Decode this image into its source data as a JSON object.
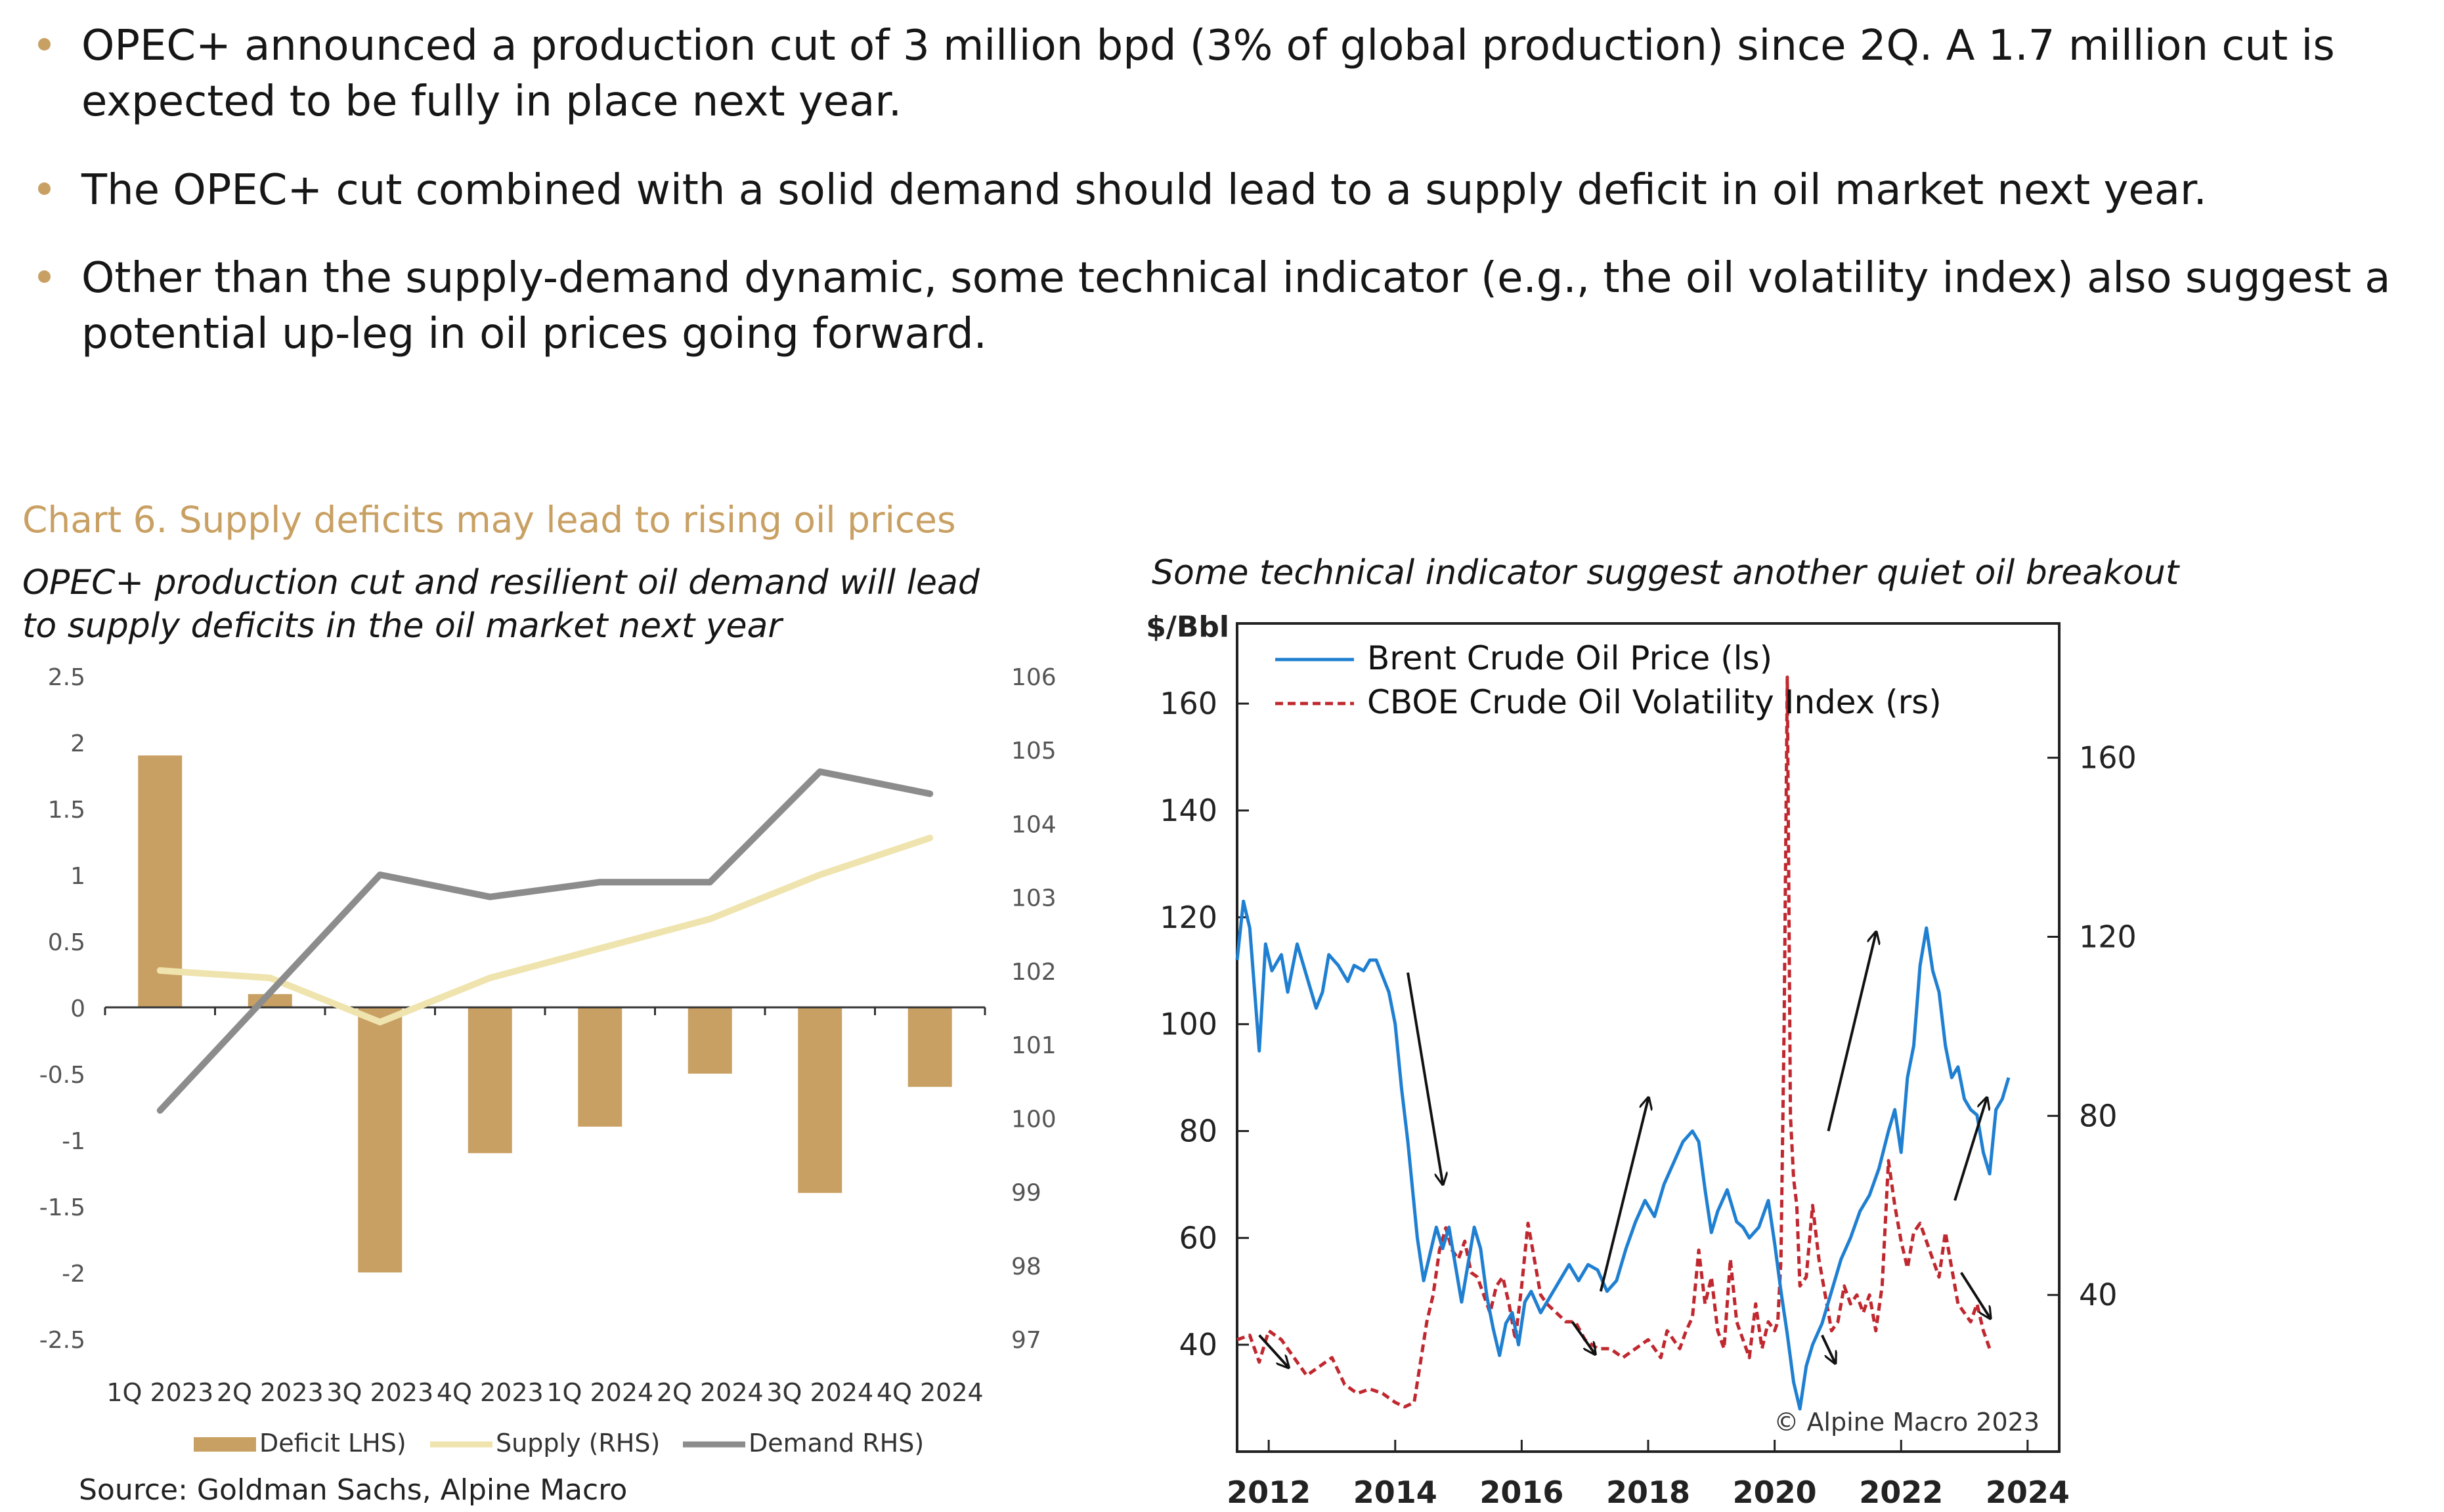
{
  "bullets": [
    {
      "text": "OPEC+ announced a production cut of 3 million bpd (3% of global production) since 2Q. A 1.7 million cut is expected to be fully in place next year."
    },
    {
      "text": "The OPEC+ cut combined with a solid demand should lead to a supply deficit in oil market next year."
    },
    {
      "text": "Other than the supply-demand dynamic, some technical indicator (e.g., the oil volatility index) also suggest a potential up-leg in oil prices going forward."
    }
  ],
  "chart6": {
    "title": "Chart 6. Supply deficits may lead to rising oil prices",
    "subtitle": "OPEC+ production cut and resilient oil demand will lead to supply deficits in the oil market next year"
  },
  "right_chart": {
    "subtitle": "Some technical indicator suggest another quiet oil breakout"
  },
  "source": "Source: Goldman Sachs, Alpine Macro",
  "colors": {
    "accent": "#c9a063",
    "bar": "#c9a063",
    "supply": "#efe3ae",
    "demand": "#8c8c8c",
    "brent": "#1f7fd1",
    "ovx": "#c0282f"
  },
  "chart_data": [
    {
      "type": "bar",
      "categories": [
        "1Q 2023",
        "2Q 2023",
        "3Q 2023",
        "4Q 2023",
        "1Q 2024",
        "2Q 2024",
        "3Q 2024",
        "4Q 2024"
      ],
      "series": [
        {
          "name": "Deficit LHS)",
          "type": "bar",
          "axis": "left",
          "values": [
            1.9,
            0.1,
            -2.0,
            -1.1,
            -0.9,
            -0.5,
            -1.4,
            -0.6
          ]
        },
        {
          "name": "Supply (RHS)",
          "type": "line",
          "axis": "right",
          "values": [
            102.0,
            101.9,
            101.3,
            101.9,
            102.3,
            102.7,
            103.3,
            103.8
          ]
        },
        {
          "name": "Demand RHS)",
          "type": "line",
          "axis": "right",
          "values": [
            100.1,
            101.7,
            103.3,
            103.0,
            103.2,
            103.2,
            104.7,
            104.4
          ]
        }
      ],
      "ylim_left": [
        -2.5,
        2.5
      ],
      "yticks_left": [
        "2.5",
        "2",
        "1.5",
        "1",
        "0.5",
        "0",
        "-0.5",
        "-1",
        "-1.5",
        "-2",
        "-2.5"
      ],
      "ylim_right": [
        97,
        106
      ],
      "yticks_right": [
        "106",
        "105",
        "104",
        "103",
        "102",
        "101",
        "100",
        "99",
        "98",
        "97"
      ],
      "legend": [
        "Deficit LHS)",
        "Supply (RHS)",
        "Demand RHS)"
      ],
      "legend_position": "bottom"
    },
    {
      "type": "line",
      "ylabel_left": "$/Bbl",
      "xlim": [
        2011.5,
        2024.5
      ],
      "xticks": [
        "2012",
        "2014",
        "2016",
        "2018",
        "2020",
        "2022",
        "2024"
      ],
      "ylim_left": [
        20,
        175
      ],
      "yticks_left": [
        "160",
        "140",
        "120",
        "100",
        "80",
        "60",
        "40"
      ],
      "ylim_right": [
        5,
        190
      ],
      "yticks_right": [
        "160",
        "120",
        "80",
        "40"
      ],
      "legend": [
        "Brent Crude Oil Price (ls)",
        "CBOE Crude Oil Volatility Index (rs)"
      ],
      "legend_position": "top-left",
      "watermark": "© Alpine Macro 2023",
      "series": [
        {
          "name": "Brent Crude Oil Price (ls)",
          "axis": "left",
          "x": [
            2011.5,
            2011.6,
            2011.7,
            2011.85,
            2011.95,
            2012.05,
            2012.2,
            2012.3,
            2012.45,
            2012.6,
            2012.75,
            2012.85,
            2012.95,
            2013.1,
            2013.25,
            2013.35,
            2013.5,
            2013.6,
            2013.7,
            2013.8,
            2013.9,
            2014.0,
            2014.1,
            2014.2,
            2014.35,
            2014.45,
            2014.55,
            2014.65,
            2014.75,
            2014.85,
            2014.95,
            2015.05,
            2015.15,
            2015.25,
            2015.35,
            2015.45,
            2015.55,
            2015.65,
            2015.75,
            2015.85,
            2015.95,
            2016.05,
            2016.15,
            2016.3,
            2016.45,
            2016.6,
            2016.75,
            2016.9,
            2017.05,
            2017.2,
            2017.35,
            2017.5,
            2017.65,
            2017.8,
            2017.95,
            2018.1,
            2018.25,
            2018.4,
            2018.55,
            2018.7,
            2018.8,
            2018.9,
            2019.0,
            2019.1,
            2019.25,
            2019.4,
            2019.5,
            2019.6,
            2019.75,
            2019.9,
            2020.0,
            2020.1,
            2020.2,
            2020.3,
            2020.4,
            2020.5,
            2020.6,
            2020.75,
            2020.9,
            2021.05,
            2021.2,
            2021.35,
            2021.5,
            2021.65,
            2021.8,
            2021.9,
            2022.0,
            2022.1,
            2022.2,
            2022.3,
            2022.4,
            2022.5,
            2022.6,
            2022.7,
            2022.8,
            2022.9,
            2023.0,
            2023.1,
            2023.2,
            2023.3,
            2023.4,
            2023.5,
            2023.6,
            2023.7
          ],
          "values": [
            112,
            123,
            118,
            95,
            115,
            110,
            113,
            106,
            115,
            109,
            103,
            106,
            113,
            111,
            108,
            111,
            110,
            112,
            112,
            109,
            106,
            100,
            88,
            78,
            60,
            52,
            57,
            62,
            58,
            62,
            55,
            48,
            55,
            62,
            58,
            49,
            43,
            38,
            44,
            46,
            40,
            48,
            50,
            46,
            49,
            52,
            55,
            52,
            55,
            54,
            50,
            52,
            58,
            63,
            67,
            64,
            70,
            74,
            78,
            80,
            78,
            69,
            61,
            65,
            69,
            63,
            62,
            60,
            62,
            67,
            59,
            50,
            42,
            33,
            28,
            36,
            40,
            44,
            50,
            56,
            60,
            65,
            68,
            73,
            80,
            84,
            76,
            90,
            96,
            111,
            118,
            110,
            106,
            96,
            90,
            92,
            86,
            84,
            83,
            76,
            72,
            84,
            86,
            90
          ]
        },
        {
          "name": "CBOE Crude Oil Volatility Index (rs)",
          "axis": "right",
          "x": [
            2011.5,
            2011.7,
            2011.85,
            2012.0,
            2012.2,
            2012.4,
            2012.6,
            2012.8,
            2013.0,
            2013.2,
            2013.4,
            2013.6,
            2013.8,
            2014.0,
            2014.15,
            2014.3,
            2014.4,
            2014.5,
            2014.6,
            2014.7,
            2014.8,
            2014.9,
            2015.0,
            2015.1,
            2015.2,
            2015.3,
            2015.4,
            2015.5,
            2015.6,
            2015.7,
            2015.8,
            2015.9,
            2016.0,
            2016.1,
            2016.2,
            2016.3,
            2016.4,
            2016.55,
            2016.7,
            2016.85,
            2017.0,
            2017.2,
            2017.4,
            2017.6,
            2017.8,
            2018.0,
            2018.1,
            2018.2,
            2018.3,
            2018.4,
            2018.5,
            2018.6,
            2018.7,
            2018.8,
            2018.9,
            2019.0,
            2019.1,
            2019.2,
            2019.3,
            2019.4,
            2019.5,
            2019.6,
            2019.7,
            2019.8,
            2019.9,
            2020.0,
            2020.05,
            2020.1,
            2020.15,
            2020.2,
            2020.25,
            2020.3,
            2020.35,
            2020.4,
            2020.5,
            2020.6,
            2020.7,
            2020.8,
            2020.9,
            2021.0,
            2021.1,
            2021.2,
            2021.3,
            2021.4,
            2021.5,
            2021.6,
            2021.7,
            2021.8,
            2021.9,
            2022.0,
            2022.1,
            2022.2,
            2022.3,
            2022.4,
            2022.5,
            2022.6,
            2022.7,
            2022.8,
            2022.9,
            2023.0,
            2023.1,
            2023.2,
            2023.3,
            2023.4
          ],
          "values": [
            30,
            31,
            25,
            32,
            30,
            26,
            22,
            24,
            26,
            20,
            18,
            19,
            18,
            16,
            15,
            16,
            25,
            34,
            40,
            50,
            55,
            50,
            48,
            52,
            45,
            44,
            40,
            36,
            42,
            44,
            38,
            30,
            42,
            56,
            48,
            40,
            38,
            36,
            34,
            34,
            30,
            28,
            28,
            26,
            28,
            30,
            28,
            26,
            32,
            30,
            28,
            32,
            35,
            50,
            38,
            44,
            32,
            28,
            48,
            34,
            30,
            26,
            38,
            28,
            34,
            32,
            34,
            48,
            100,
            178,
            80,
            66,
            60,
            42,
            44,
            60,
            48,
            40,
            32,
            34,
            42,
            38,
            40,
            36,
            40,
            32,
            42,
            70,
            60,
            52,
            46,
            54,
            56,
            52,
            48,
            44,
            54,
            46,
            38,
            36,
            34,
            38,
            32,
            28
          ]
        }
      ]
    }
  ]
}
